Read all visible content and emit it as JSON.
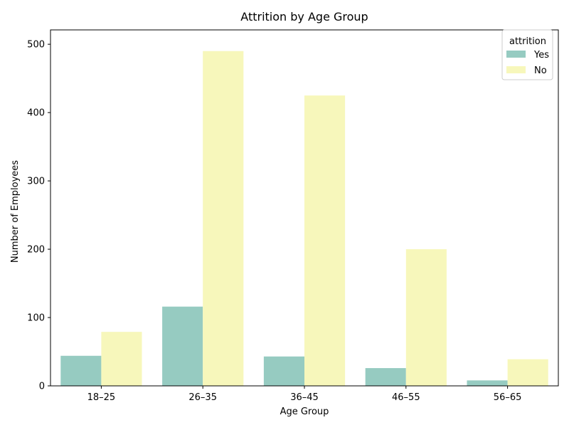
{
  "chart_data": {
    "type": "bar",
    "title": "Attrition by Age Group",
    "xlabel": "Age Group",
    "ylabel": "Number of Employees",
    "categories": [
      "18–25",
      "26–35",
      "36–45",
      "46–55",
      "56–65"
    ],
    "series": [
      {
        "name": "Yes",
        "color": "#96cbc1",
        "values": [
          44,
          116,
          43,
          26,
          8
        ]
      },
      {
        "name": "No",
        "color": "#f7f7bb",
        "values": [
          79,
          490,
          425,
          200,
          39
        ]
      }
    ],
    "ylim": [
      0,
      521
    ],
    "yticks": [
      0,
      100,
      200,
      300,
      400,
      500
    ],
    "grid": false,
    "legend": {
      "title": "attrition",
      "placement": "top-right"
    }
  }
}
